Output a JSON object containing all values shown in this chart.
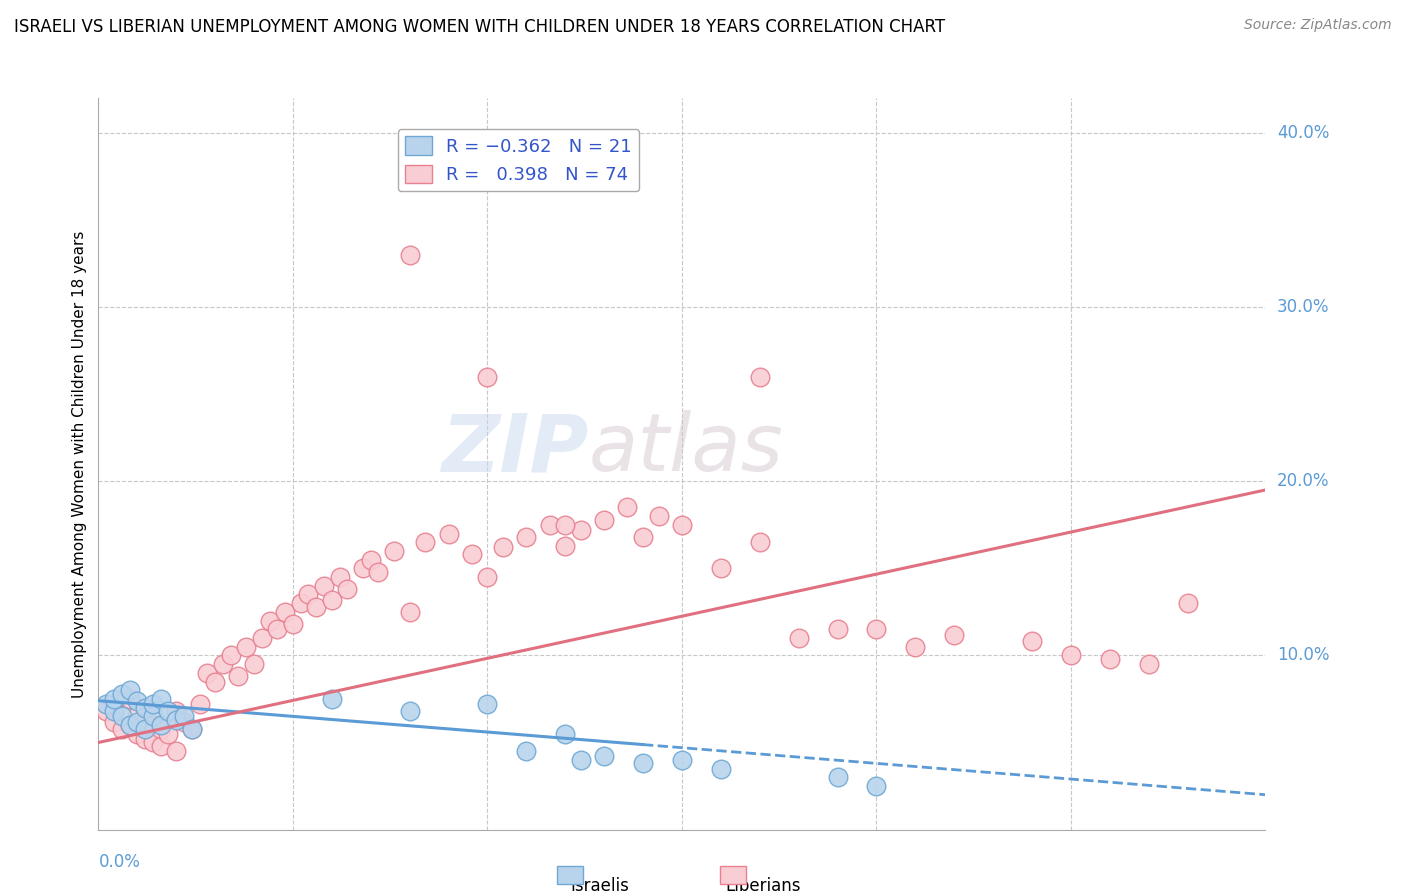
{
  "title": "ISRAELI VS LIBERIAN UNEMPLOYMENT AMONG WOMEN WITH CHILDREN UNDER 18 YEARS CORRELATION CHART",
  "source": "Source: ZipAtlas.com",
  "ylabel": "Unemployment Among Women with Children Under 18 years",
  "xlim": [
    0.0,
    0.15
  ],
  "ylim": [
    0.0,
    0.42
  ],
  "title_fontsize": 12,
  "source_fontsize": 10,
  "ylabel_fontsize": 11,
  "axis_label_color": "#5b9bd5",
  "grid_color": "#c8c8c8",
  "background_color": "#ffffff",
  "israeli_fill": "#b8d4ed",
  "israeli_edge": "#6fa8d4",
  "liberian_fill": "#f9cdd4",
  "liberian_edge": "#e88090",
  "isr_line_color": "#5b9bd5",
  "lib_line_color": "#e07080",
  "watermark_zip": "ZIP",
  "watermark_atlas": "atlas",
  "israelis_x": [
    0.001,
    0.002,
    0.002,
    0.003,
    0.003,
    0.004,
    0.004,
    0.005,
    0.005,
    0.006,
    0.006,
    0.007,
    0.007,
    0.008,
    0.008,
    0.009,
    0.01,
    0.011,
    0.012,
    0.03,
    0.04,
    0.05,
    0.055,
    0.06,
    0.062,
    0.065,
    0.07,
    0.075,
    0.08,
    0.095,
    0.1
  ],
  "israelis_y": [
    0.072,
    0.068,
    0.075,
    0.065,
    0.078,
    0.06,
    0.08,
    0.062,
    0.074,
    0.058,
    0.07,
    0.065,
    0.072,
    0.06,
    0.075,
    0.068,
    0.063,
    0.065,
    0.058,
    0.075,
    0.068,
    0.072,
    0.045,
    0.055,
    0.04,
    0.042,
    0.038,
    0.04,
    0.035,
    0.03,
    0.025
  ],
  "liberians_x": [
    0.001,
    0.002,
    0.002,
    0.003,
    0.004,
    0.004,
    0.005,
    0.005,
    0.006,
    0.006,
    0.007,
    0.007,
    0.008,
    0.008,
    0.009,
    0.01,
    0.01,
    0.011,
    0.012,
    0.013,
    0.014,
    0.015,
    0.016,
    0.017,
    0.018,
    0.019,
    0.02,
    0.021,
    0.022,
    0.023,
    0.024,
    0.025,
    0.026,
    0.027,
    0.028,
    0.029,
    0.03,
    0.031,
    0.032,
    0.034,
    0.035,
    0.036,
    0.038,
    0.04,
    0.042,
    0.045,
    0.048,
    0.05,
    0.052,
    0.055,
    0.058,
    0.06,
    0.062,
    0.065,
    0.068,
    0.07,
    0.072,
    0.075,
    0.08,
    0.085,
    0.09,
    0.095,
    0.1,
    0.105,
    0.11,
    0.12,
    0.125,
    0.13,
    0.135,
    0.14,
    0.085,
    0.04,
    0.05,
    0.06
  ],
  "liberians_y": [
    0.068,
    0.072,
    0.062,
    0.058,
    0.075,
    0.06,
    0.065,
    0.055,
    0.07,
    0.052,
    0.06,
    0.05,
    0.048,
    0.058,
    0.055,
    0.068,
    0.045,
    0.062,
    0.058,
    0.072,
    0.09,
    0.085,
    0.095,
    0.1,
    0.088,
    0.105,
    0.095,
    0.11,
    0.12,
    0.115,
    0.125,
    0.118,
    0.13,
    0.135,
    0.128,
    0.14,
    0.132,
    0.145,
    0.138,
    0.15,
    0.155,
    0.148,
    0.16,
    0.125,
    0.165,
    0.17,
    0.158,
    0.145,
    0.162,
    0.168,
    0.175,
    0.163,
    0.172,
    0.178,
    0.185,
    0.168,
    0.18,
    0.175,
    0.15,
    0.165,
    0.11,
    0.115,
    0.115,
    0.105,
    0.112,
    0.108,
    0.1,
    0.098,
    0.095,
    0.13,
    0.26,
    0.33,
    0.26,
    0.175
  ],
  "isr_trend_x": [
    0.0,
    0.15
  ],
  "isr_trend_y": [
    0.074,
    0.02
  ],
  "lib_trend_x": [
    0.0,
    0.15
  ],
  "lib_trend_y": [
    0.05,
    0.195
  ]
}
